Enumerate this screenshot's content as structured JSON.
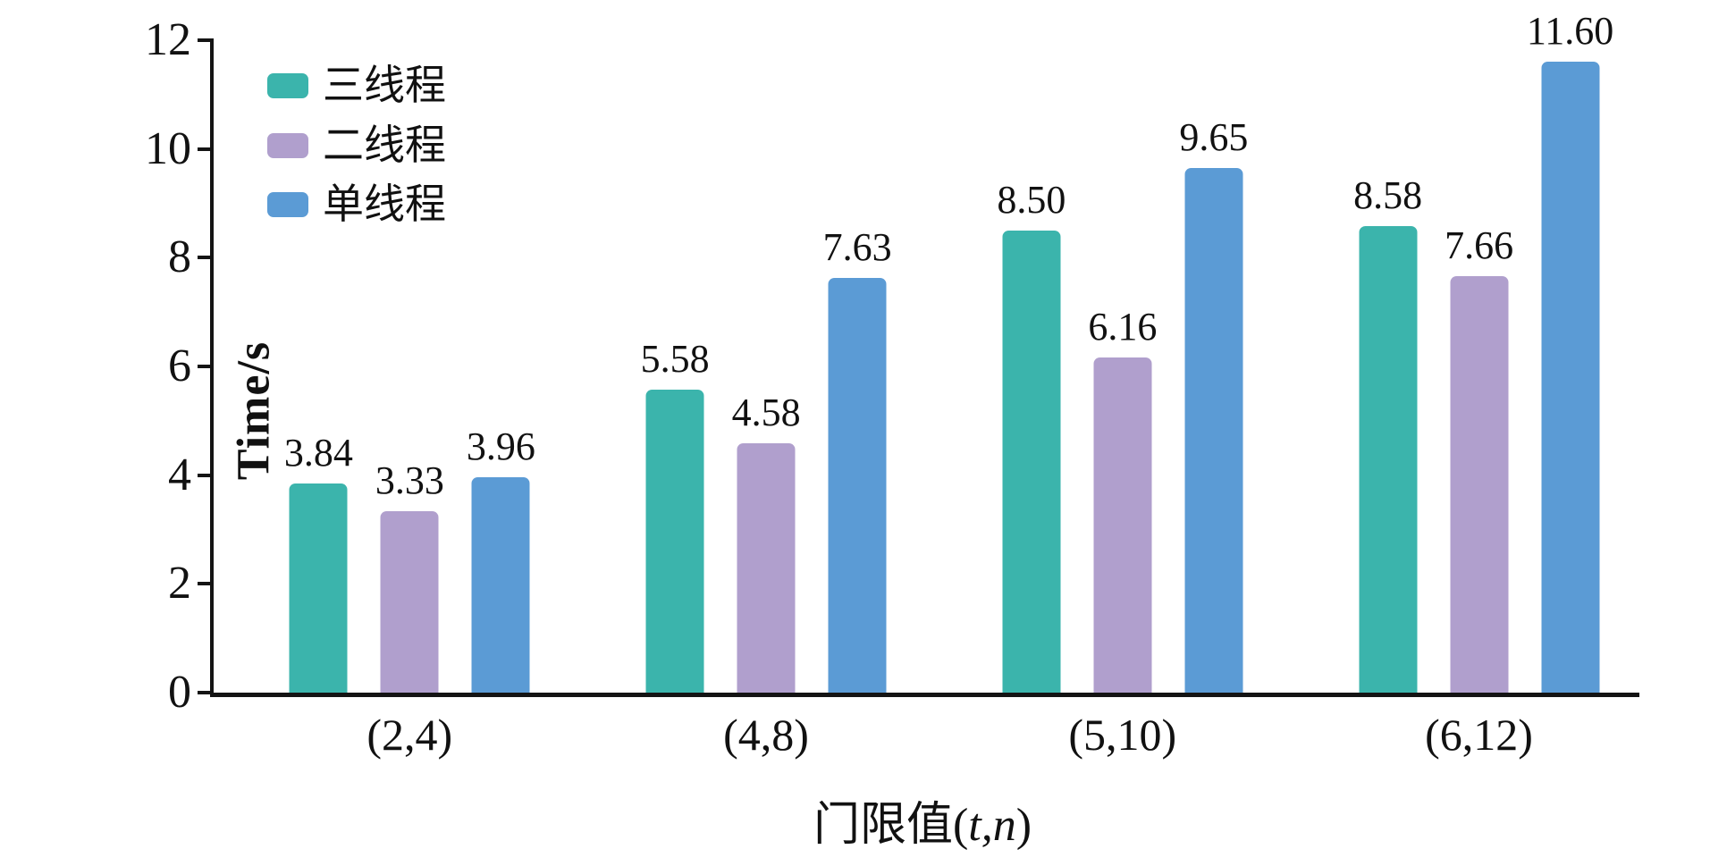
{
  "chart_data": {
    "type": "bar",
    "title": "",
    "categories": [
      "(2,4)",
      "(4,8)",
      "(5,10)",
      "(6,12)"
    ],
    "series": [
      {
        "name": "三线程",
        "color": "#3bb4ac",
        "values": [
          3.84,
          5.58,
          8.5,
          8.58
        ],
        "labels": [
          "3.84",
          "5.58",
          "8.50",
          "8.58"
        ]
      },
      {
        "name": "二线程",
        "color": "#b09fcd",
        "values": [
          3.33,
          4.58,
          6.16,
          7.66
        ],
        "labels": [
          "3.33",
          "4.58",
          "6.16",
          "7.66"
        ]
      },
      {
        "name": "单线程",
        "color": "#5b9bd5",
        "values": [
          3.96,
          7.63,
          9.65,
          11.6
        ],
        "labels": [
          "3.96",
          "7.63",
          "9.65",
          "11.60"
        ]
      }
    ],
    "ylabel": "Time/s",
    "xlabel_prefix": "门限值(",
    "xlabel_italic": "t,n",
    "xlabel_suffix": ")",
    "ylim": [
      0,
      12
    ],
    "yticks": [
      "0",
      "2",
      "4",
      "6",
      "8",
      "10",
      "12"
    ],
    "legend_position": "top-left",
    "grid": false,
    "axis_color": "#141414"
  }
}
